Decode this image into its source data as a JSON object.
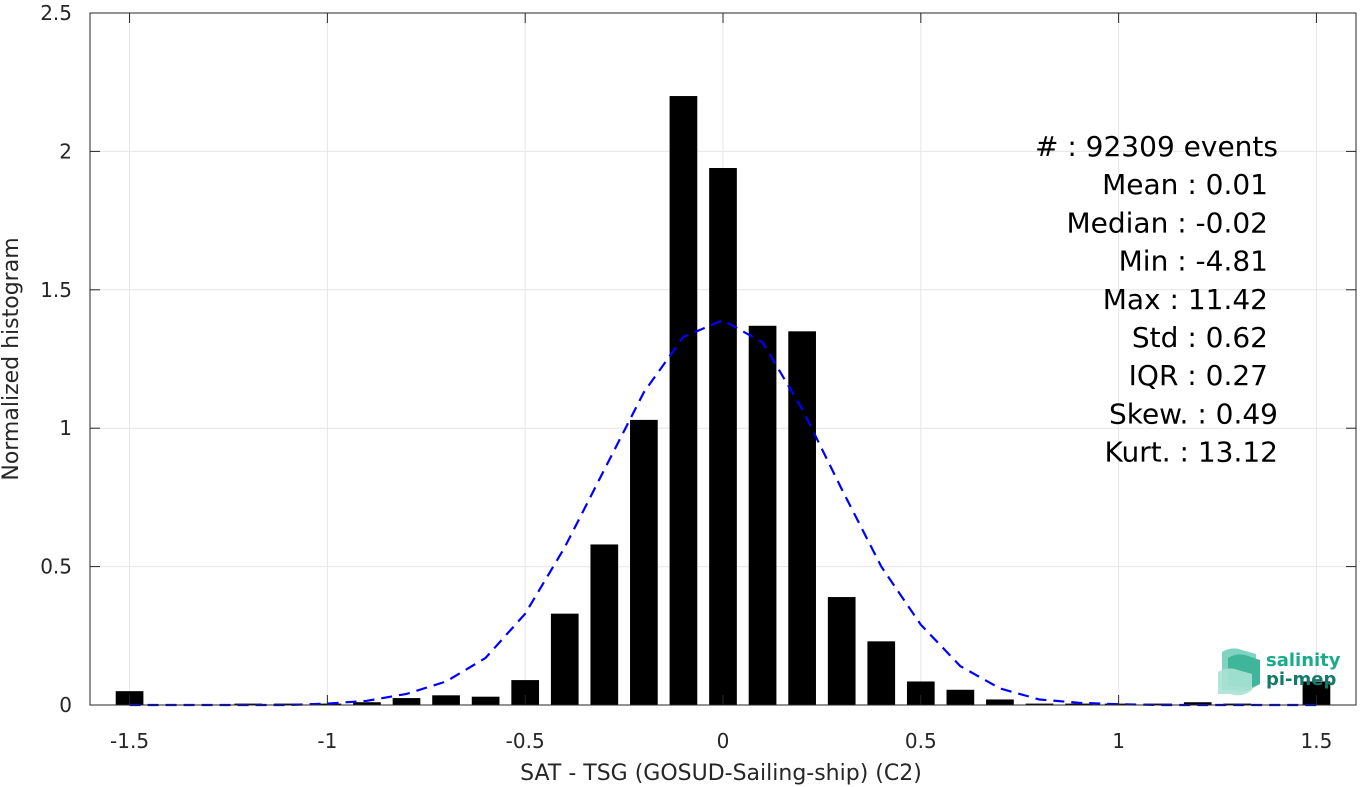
{
  "chart_data": {
    "type": "bar",
    "xlabel": "SAT - TSG (GOSUD-Sailing-ship) (C2)",
    "ylabel": "Normalized histogram",
    "xlim": [
      -1.6,
      1.6
    ],
    "ylim": [
      0,
      2.5
    ],
    "grid": true,
    "x_ticks": [
      -1.5,
      -1,
      -0.5,
      0,
      0.5,
      1,
      1.5
    ],
    "x_tick_labels": [
      "-1.5",
      "-1",
      "-0.5",
      "0",
      "0.5",
      "1",
      "1.5"
    ],
    "y_ticks": [
      0,
      0.5,
      1,
      1.5,
      2,
      2.5
    ],
    "y_tick_labels": [
      "0",
      "0.5",
      "1",
      "1.5",
      "2",
      "2.5"
    ],
    "bar_width": 0.07,
    "bar_color": "#000000",
    "bars": {
      "x": [
        -1.5,
        -1.4,
        -1.3,
        -1.2,
        -1.1,
        -1.0,
        -0.9,
        -0.8,
        -0.7,
        -0.6,
        -0.5,
        -0.4,
        -0.3,
        -0.2,
        -0.1,
        0.0,
        0.1,
        0.2,
        0.3,
        0.4,
        0.5,
        0.6,
        0.7,
        0.8,
        0.9,
        1.0,
        1.1,
        1.2,
        1.3,
        1.4,
        1.5
      ],
      "values": [
        0.05,
        0.0,
        0.0,
        0.005,
        0.005,
        0.005,
        0.01,
        0.025,
        0.035,
        0.03,
        0.09,
        0.33,
        0.58,
        1.03,
        2.2,
        1.94,
        1.37,
        1.35,
        0.39,
        0.23,
        0.085,
        0.055,
        0.02,
        0.005,
        0.005,
        0.005,
        0.005,
        0.01,
        0.005,
        0.0,
        0.085
      ]
    },
    "fit_curve": {
      "style": "dashed",
      "color": "#0000ff",
      "x": [
        -1.5,
        -1.4,
        -1.3,
        -1.2,
        -1.1,
        -1.0,
        -0.9,
        -0.8,
        -0.7,
        -0.6,
        -0.5,
        -0.4,
        -0.3,
        -0.2,
        -0.1,
        0.0,
        0.1,
        0.2,
        0.3,
        0.4,
        0.5,
        0.6,
        0.7,
        0.8,
        0.9,
        1.0,
        1.1,
        1.2,
        1.3,
        1.4,
        1.5
      ],
      "y": [
        0.0,
        0.0,
        0.0,
        0.0,
        0.0,
        0.005,
        0.015,
        0.04,
        0.085,
        0.17,
        0.33,
        0.57,
        0.85,
        1.13,
        1.33,
        1.39,
        1.31,
        1.07,
        0.78,
        0.5,
        0.29,
        0.14,
        0.06,
        0.02,
        0.008,
        0.003,
        0.0,
        0.0,
        0.0,
        0.0,
        0.0
      ]
    },
    "annotations": [
      "#  : 92309 events",
      "Mean : 0.01",
      "Median : -0.02",
      "Min : -4.81",
      "Max : 11.42",
      "Std : 0.62",
      "IQR : 0.27",
      "Skew. : 0.49",
      "Kurt. : 13.12"
    ]
  },
  "logo": {
    "line1": "salinity",
    "line2": "pi-mep",
    "color1": "#1aaa8c",
    "color2": "#137a6a"
  }
}
